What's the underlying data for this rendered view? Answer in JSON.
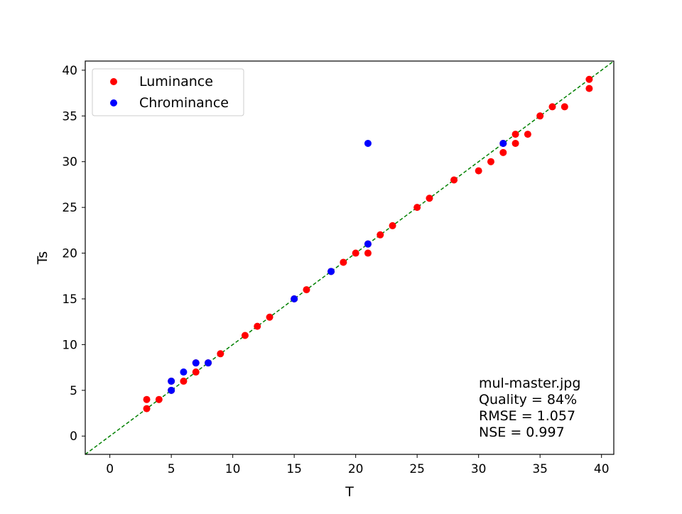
{
  "chart_data": {
    "type": "scatter",
    "title": "",
    "xlabel": "T",
    "ylabel": "Ts",
    "xlim": [
      -2,
      41
    ],
    "ylim": [
      -2,
      41
    ],
    "x_ticks": [
      0,
      5,
      10,
      15,
      20,
      25,
      30,
      35,
      40
    ],
    "y_ticks": [
      0,
      5,
      10,
      15,
      20,
      25,
      30,
      35,
      40
    ],
    "grid": false,
    "legend_position": "upper-left",
    "reference_line": {
      "style": "dashed",
      "color": "#008000",
      "slope": 1,
      "intercept": 0
    },
    "series": [
      {
        "name": "Luminance",
        "color": "#ff0000",
        "points": [
          [
            3,
            3
          ],
          [
            3,
            4
          ],
          [
            4,
            4
          ],
          [
            5,
            5
          ],
          [
            5,
            6
          ],
          [
            6,
            6
          ],
          [
            7,
            7
          ],
          [
            7,
            8
          ],
          [
            8,
            8
          ],
          [
            9,
            9
          ],
          [
            11,
            11
          ],
          [
            12,
            12
          ],
          [
            13,
            13
          ],
          [
            15,
            15
          ],
          [
            16,
            16
          ],
          [
            18,
            18
          ],
          [
            19,
            19
          ],
          [
            20,
            20
          ],
          [
            21,
            20
          ],
          [
            21,
            21
          ],
          [
            22,
            22
          ],
          [
            23,
            23
          ],
          [
            25,
            25
          ],
          [
            26,
            26
          ],
          [
            28,
            28
          ],
          [
            30,
            29
          ],
          [
            31,
            30
          ],
          [
            32,
            31
          ],
          [
            32,
            32
          ],
          [
            33,
            32
          ],
          [
            33,
            33
          ],
          [
            34,
            33
          ],
          [
            35,
            35
          ],
          [
            36,
            36
          ],
          [
            37,
            36
          ],
          [
            39,
            38
          ],
          [
            39,
            39
          ]
        ]
      },
      {
        "name": "Chrominance",
        "color": "#0000ff",
        "points": [
          [
            5,
            5
          ],
          [
            5,
            6
          ],
          [
            6,
            7
          ],
          [
            7,
            8
          ],
          [
            8,
            8
          ],
          [
            15,
            15
          ],
          [
            18,
            18
          ],
          [
            21,
            21
          ],
          [
            21,
            32
          ],
          [
            32,
            32
          ]
        ]
      }
    ],
    "annotation_lines": [
      "mul-master.jpg",
      "Quality = 84%",
      "RMSE = 1.057",
      "NSE = 0.997"
    ]
  }
}
